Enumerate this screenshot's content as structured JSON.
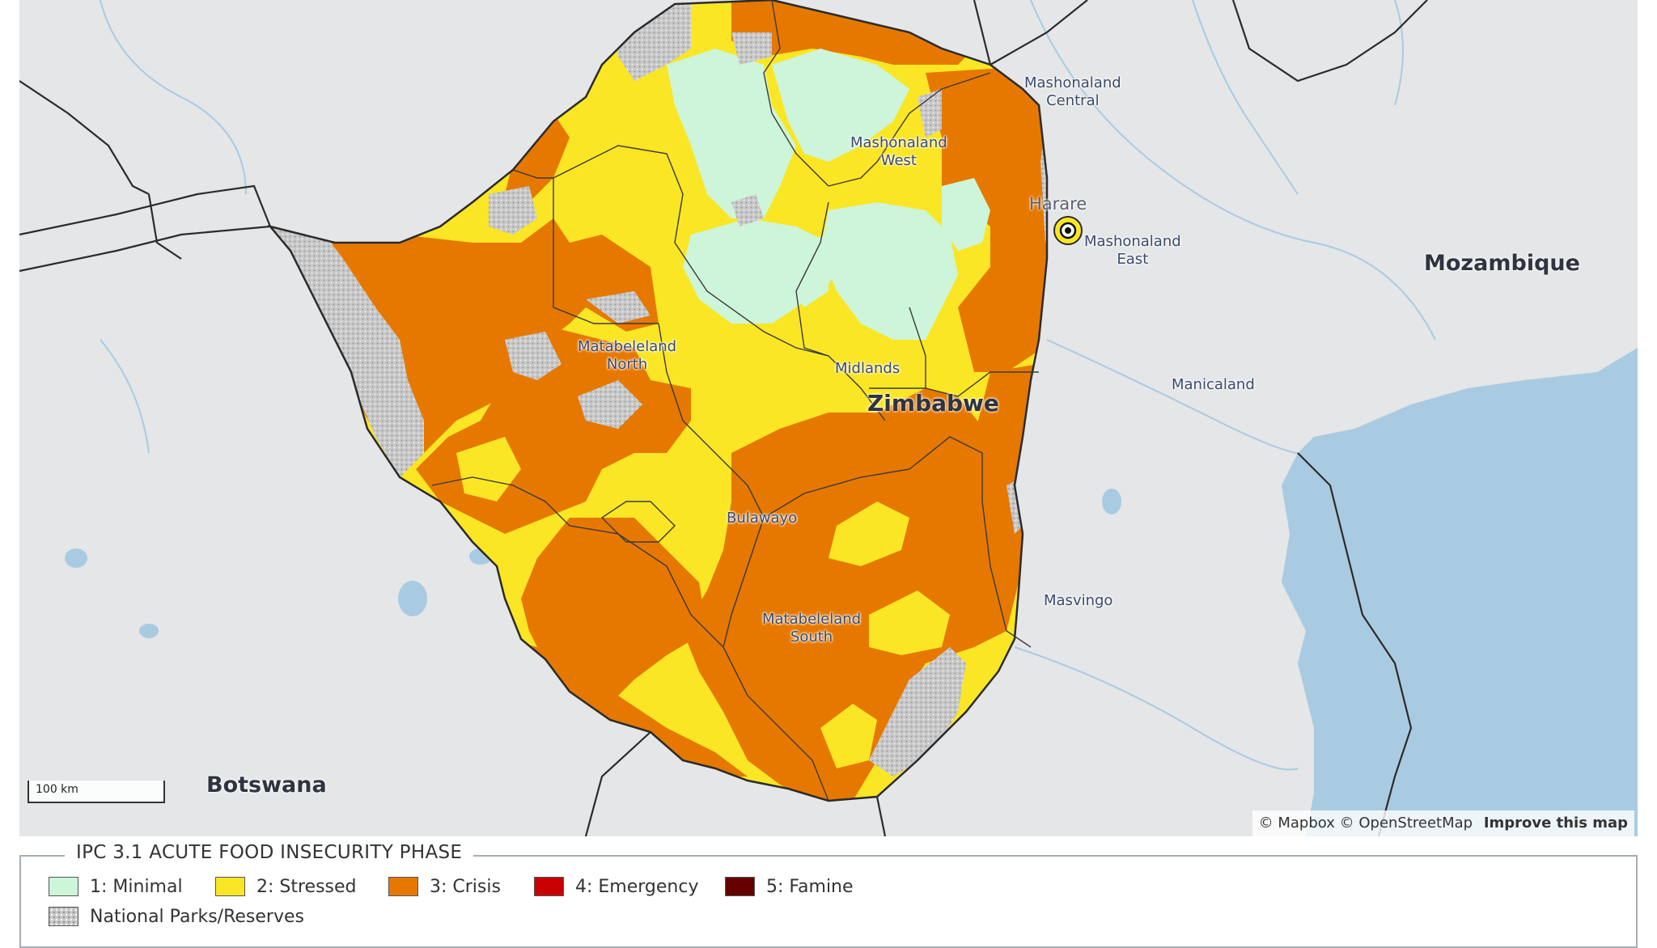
{
  "map": {
    "countries": {
      "mozambique": "Mozambique",
      "botswana": "Botswana",
      "zimbabwe": "Zimbabwe"
    },
    "capital": "Harare",
    "provinces": {
      "mashonaland_central": [
        "Mashonaland",
        "Central"
      ],
      "mashonaland_west": [
        "Mashonaland",
        "West"
      ],
      "mashonaland_east": [
        "Mashonaland",
        "East"
      ],
      "matabeleland_north": [
        "Matabeleland",
        "North"
      ],
      "midlands": "Midlands",
      "manicaland": "Manicaland",
      "bulawayo": "Bulawayo",
      "masvingo": "Masvingo",
      "matabeleland_south": [
        "Matabeleland",
        "South"
      ]
    },
    "scale_label": "100 km",
    "attribution": {
      "mapbox": "© Mapbox",
      "osm": "© OpenStreetMap",
      "improve": "Improve this map"
    },
    "colors": {
      "water": "#a9cbe2",
      "land": "#e4e6e7",
      "minimal": "#cdf5d9",
      "stressed": "#fae624",
      "crisis": "#e67800",
      "emergency": "#c80000",
      "famine": "#640000",
      "parks": "#c8c8c8"
    }
  },
  "legend": {
    "title": "IPC 3.1 ACUTE FOOD INSECURITY PHASE",
    "items": [
      {
        "label": "1: Minimal",
        "color": "#cdf5d9"
      },
      {
        "label": "2: Stressed",
        "color": "#fae624"
      },
      {
        "label": "3: Crisis",
        "color": "#e67800"
      },
      {
        "label": "4: Emergency",
        "color": "#c80000"
      },
      {
        "label": "5: Famine",
        "color": "#640000"
      }
    ],
    "parks_label": "National Parks/Reserves"
  }
}
